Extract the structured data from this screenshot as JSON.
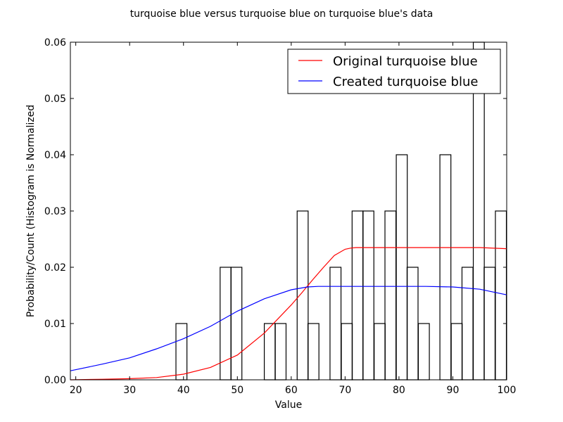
{
  "chart_data": {
    "type": "bar",
    "title": "turquoise blue versus turquoise blue on turquoise blue's data",
    "xlabel": "Value",
    "ylabel": "Probability/Count (Histogram is Normalized",
    "xlim": [
      19,
      100
    ],
    "ylim": [
      0,
      0.06
    ],
    "xticks": [
      20,
      30,
      40,
      50,
      60,
      70,
      80,
      90,
      100
    ],
    "xtick_labels": [
      "20",
      "30",
      "40",
      "50",
      "60",
      "70",
      "80",
      "90",
      "100"
    ],
    "yticks": [
      0,
      0.01,
      0.02,
      0.03,
      0.04,
      0.05,
      0.06
    ],
    "ytick_labels": [
      "0.00",
      "0.01",
      "0.02",
      "0.03",
      "0.04",
      "0.05",
      "0.06"
    ],
    "grid": false,
    "legend_position": "top-right",
    "histogram": {
      "bin_width": 2.04,
      "bins": [
        {
          "start": 38.6,
          "value": 0.01
        },
        {
          "start": 46.8,
          "value": 0.02
        },
        {
          "start": 48.8,
          "value": 0.02
        },
        {
          "start": 55.0,
          "value": 0.01
        },
        {
          "start": 57.0,
          "value": 0.01
        },
        {
          "start": 61.1,
          "value": 0.03
        },
        {
          "start": 63.1,
          "value": 0.01
        },
        {
          "start": 67.2,
          "value": 0.02
        },
        {
          "start": 69.3,
          "value": 0.01
        },
        {
          "start": 71.3,
          "value": 0.03
        },
        {
          "start": 73.3,
          "value": 0.03
        },
        {
          "start": 75.4,
          "value": 0.01
        },
        {
          "start": 77.4,
          "value": 0.03
        },
        {
          "start": 79.5,
          "value": 0.04
        },
        {
          "start": 81.5,
          "value": 0.02
        },
        {
          "start": 83.6,
          "value": 0.01
        },
        {
          "start": 87.6,
          "value": 0.04
        },
        {
          "start": 89.7,
          "value": 0.01
        },
        {
          "start": 91.7,
          "value": 0.02
        },
        {
          "start": 93.8,
          "value": 0.06
        },
        {
          "start": 95.8,
          "value": 0.02
        },
        {
          "start": 97.9,
          "value": 0.03
        }
      ]
    },
    "series": [
      {
        "name": "Original turquoise blue",
        "color": "#ff0000",
        "x": [
          19,
          25,
          30,
          35,
          40,
          45,
          50,
          55,
          60,
          62,
          64,
          66,
          68,
          70,
          71,
          72,
          75,
          80,
          90,
          95,
          100
        ],
        "y": [
          0.0,
          0.0001,
          0.0002,
          0.0004,
          0.001,
          0.0022,
          0.0044,
          0.0083,
          0.0133,
          0.0155,
          0.0178,
          0.02,
          0.0221,
          0.0232,
          0.0234,
          0.0235,
          0.0235,
          0.0235,
          0.0235,
          0.0235,
          0.0233
        ]
      },
      {
        "name": "Created turquoise blue",
        "color": "#0000ff",
        "x": [
          19,
          25,
          30,
          35,
          40,
          45,
          50,
          55,
          60,
          63,
          65,
          70,
          75,
          80,
          85,
          90,
          95,
          100
        ],
        "y": [
          0.0016,
          0.0028,
          0.0039,
          0.0055,
          0.0073,
          0.0095,
          0.0122,
          0.0144,
          0.016,
          0.0165,
          0.0166,
          0.0166,
          0.0166,
          0.0166,
          0.0166,
          0.0165,
          0.0161,
          0.0151
        ]
      }
    ]
  }
}
